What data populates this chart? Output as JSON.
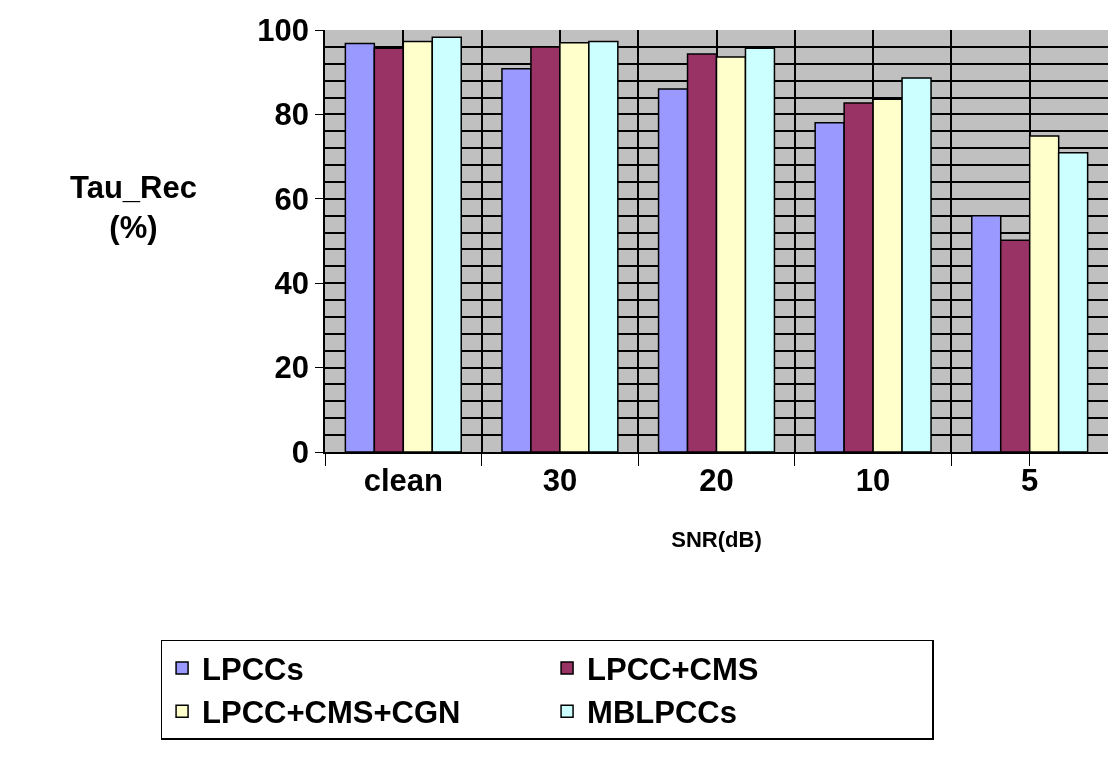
{
  "chart_data": {
    "type": "bar",
    "xlabel": "SNR(dB)",
    "ylabel": "Tau_Rec (%)",
    "categories": [
      "clean",
      "30",
      "20",
      "10",
      "5"
    ],
    "series": [
      {
        "name": "LPCCs",
        "color": "#9999ff",
        "values": [
          96.8,
          90.8,
          86,
          78,
          56
        ]
      },
      {
        "name": "LPCC+CMS",
        "color": "#993366",
        "values": [
          95.7,
          96,
          94.3,
          82.7,
          50.2
        ]
      },
      {
        "name": "LPCC+CMS+CGN",
        "color": "#ffffcc",
        "values": [
          97.3,
          97,
          93.6,
          83.6,
          74.9
        ]
      },
      {
        "name": "MBLPCCs",
        "color": "#ccffff",
        "values": [
          98.3,
          97.3,
          95.7,
          88.6,
          70.9
        ]
      }
    ],
    "ylim": [
      0,
      100
    ],
    "yticks": [
      0,
      20,
      40,
      60,
      80,
      100
    ],
    "grid": true,
    "legend": "bottom"
  }
}
